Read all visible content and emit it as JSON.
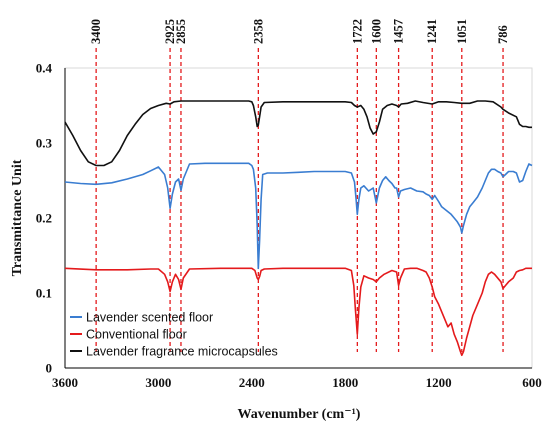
{
  "chart_data": {
    "type": "line",
    "title": "",
    "xlabel": "Wavenumber (cm⁻¹)",
    "ylabel": "Transmittance Unit",
    "xlim": [
      3600,
      600
    ],
    "ylim": [
      0,
      0.4
    ],
    "x_reversed": true,
    "x_ticks": [
      3600,
      3000,
      2400,
      1800,
      1200,
      600
    ],
    "y_ticks": [
      0,
      0.1,
      0.2,
      0.3,
      0.4
    ],
    "y_tick_labels": [
      "0",
      "0.1",
      "0.2",
      "0.3",
      "0.4"
    ],
    "grid": false,
    "legend_position": "bottom-left",
    "peak_markers": [
      3400,
      2925,
      2855,
      2358,
      1722,
      1600,
      1457,
      1241,
      1051,
      786
    ],
    "peak_color": "#e41a1c",
    "series": [
      {
        "name": "Lavender scented floor",
        "color": "#3a7dd1",
        "x": [
          3600,
          3500,
          3400,
          3300,
          3200,
          3100,
          3050,
          3000,
          2960,
          2940,
          2925,
          2910,
          2890,
          2870,
          2855,
          2840,
          2800,
          2700,
          2600,
          2500,
          2420,
          2400,
          2390,
          2375,
          2365,
          2358,
          2350,
          2345,
          2340,
          2330,
          2300,
          2200,
          2100,
          2000,
          1900,
          1800,
          1760,
          1740,
          1730,
          1722,
          1712,
          1700,
          1680,
          1650,
          1620,
          1600,
          1580,
          1560,
          1540,
          1520,
          1500,
          1480,
          1470,
          1457,
          1445,
          1420,
          1380,
          1340,
          1300,
          1280,
          1260,
          1241,
          1225,
          1200,
          1180,
          1150,
          1120,
          1100,
          1080,
          1060,
          1051,
          1040,
          1020,
          1000,
          980,
          950,
          920,
          900,
          880,
          860,
          840,
          820,
          800,
          786,
          770,
          750,
          720,
          700,
          680,
          660,
          640,
          620,
          600
        ],
        "values": [
          0.248,
          0.246,
          0.245,
          0.247,
          0.252,
          0.258,
          0.263,
          0.268,
          0.258,
          0.24,
          0.213,
          0.232,
          0.248,
          0.252,
          0.237,
          0.252,
          0.272,
          0.273,
          0.273,
          0.273,
          0.273,
          0.27,
          0.265,
          0.24,
          0.19,
          0.133,
          0.17,
          0.2,
          0.225,
          0.258,
          0.26,
          0.26,
          0.261,
          0.262,
          0.262,
          0.262,
          0.26,
          0.248,
          0.225,
          0.205,
          0.225,
          0.24,
          0.243,
          0.236,
          0.24,
          0.22,
          0.24,
          0.25,
          0.255,
          0.25,
          0.246,
          0.24,
          0.24,
          0.228,
          0.236,
          0.238,
          0.24,
          0.236,
          0.235,
          0.232,
          0.23,
          0.225,
          0.23,
          0.222,
          0.215,
          0.21,
          0.205,
          0.2,
          0.195,
          0.188,
          0.18,
          0.19,
          0.205,
          0.215,
          0.22,
          0.228,
          0.24,
          0.25,
          0.26,
          0.265,
          0.265,
          0.262,
          0.26,
          0.255,
          0.258,
          0.262,
          0.262,
          0.26,
          0.248,
          0.25,
          0.262,
          0.272,
          0.27
        ]
      },
      {
        "name": "Conventional floor",
        "color": "#e41a1c",
        "x": [
          3600,
          3400,
          3200,
          3050,
          3000,
          2960,
          2940,
          2925,
          2910,
          2890,
          2870,
          2855,
          2840,
          2800,
          2600,
          2420,
          2400,
          2380,
          2365,
          2358,
          2350,
          2340,
          2320,
          2200,
          2000,
          1800,
          1760,
          1745,
          1735,
          1722,
          1712,
          1700,
          1680,
          1650,
          1620,
          1600,
          1580,
          1550,
          1500,
          1470,
          1457,
          1445,
          1420,
          1380,
          1340,
          1300,
          1280,
          1260,
          1241,
          1225,
          1200,
          1180,
          1160,
          1140,
          1120,
          1100,
          1080,
          1060,
          1051,
          1040,
          1020,
          1000,
          980,
          950,
          920,
          900,
          880,
          860,
          840,
          800,
          786,
          770,
          750,
          720,
          700,
          680,
          660,
          640,
          620,
          600
        ],
        "values": [
          0.133,
          0.131,
          0.131,
          0.132,
          0.132,
          0.125,
          0.115,
          0.102,
          0.115,
          0.125,
          0.118,
          0.105,
          0.12,
          0.132,
          0.133,
          0.133,
          0.133,
          0.13,
          0.12,
          0.118,
          0.122,
          0.13,
          0.132,
          0.133,
          0.133,
          0.133,
          0.13,
          0.11,
          0.08,
          0.045,
          0.08,
          0.108,
          0.123,
          0.12,
          0.118,
          0.115,
          0.12,
          0.125,
          0.13,
          0.128,
          0.11,
          0.12,
          0.132,
          0.133,
          0.133,
          0.13,
          0.128,
          0.12,
          0.108,
          0.095,
          0.085,
          0.075,
          0.065,
          0.055,
          0.06,
          0.045,
          0.035,
          0.022,
          0.017,
          0.022,
          0.04,
          0.055,
          0.07,
          0.085,
          0.1,
          0.115,
          0.125,
          0.128,
          0.125,
          0.115,
          0.106,
          0.11,
          0.115,
          0.12,
          0.128,
          0.13,
          0.131,
          0.133,
          0.133,
          0.133
        ]
      },
      {
        "name": "Lavender fragrance microcapsules",
        "color": "#111111",
        "x": [
          3600,
          3550,
          3500,
          3450,
          3400,
          3350,
          3300,
          3250,
          3200,
          3150,
          3100,
          3050,
          3000,
          2950,
          2925,
          2900,
          2855,
          2800,
          2700,
          2600,
          2500,
          2420,
          2400,
          2390,
          2375,
          2365,
          2358,
          2350,
          2340,
          2320,
          2200,
          2000,
          1800,
          1760,
          1740,
          1722,
          1700,
          1680,
          1660,
          1640,
          1620,
          1600,
          1580,
          1560,
          1530,
          1500,
          1470,
          1457,
          1440,
          1400,
          1350,
          1300,
          1241,
          1200,
          1150,
          1100,
          1051,
          1000,
          950,
          900,
          850,
          800,
          786,
          750,
          700,
          680,
          660,
          640,
          620,
          600
        ],
        "values": [
          0.328,
          0.31,
          0.29,
          0.275,
          0.27,
          0.27,
          0.275,
          0.29,
          0.31,
          0.325,
          0.338,
          0.346,
          0.35,
          0.353,
          0.352,
          0.355,
          0.356,
          0.356,
          0.356,
          0.356,
          0.356,
          0.356,
          0.355,
          0.35,
          0.335,
          0.322,
          0.324,
          0.335,
          0.348,
          0.354,
          0.355,
          0.355,
          0.355,
          0.354,
          0.35,
          0.348,
          0.35,
          0.345,
          0.335,
          0.32,
          0.312,
          0.315,
          0.328,
          0.345,
          0.35,
          0.352,
          0.35,
          0.348,
          0.352,
          0.353,
          0.356,
          0.354,
          0.352,
          0.355,
          0.355,
          0.354,
          0.353,
          0.353,
          0.356,
          0.356,
          0.355,
          0.348,
          0.345,
          0.34,
          0.335,
          0.325,
          0.322,
          0.322,
          0.321,
          0.321
        ]
      }
    ]
  }
}
